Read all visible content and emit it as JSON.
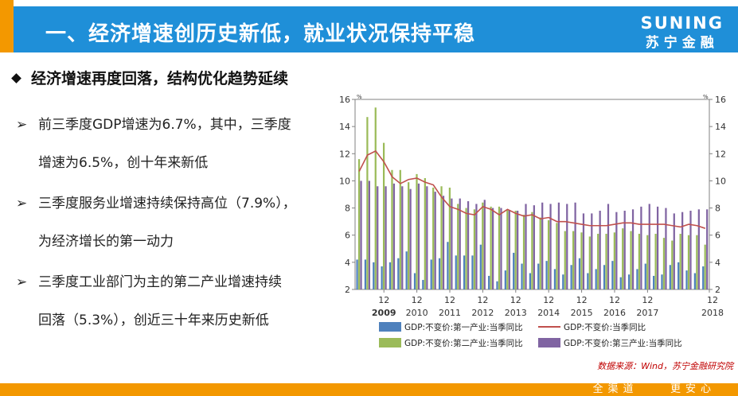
{
  "header": {
    "title": "一、经济增速创历史新低，就业状况保持平稳",
    "logo_en": "SUNING",
    "logo_cn": "苏宁金融"
  },
  "section": {
    "heading": "经济增速再度回落，结构优化趋势延续",
    "bullets": [
      {
        "line1": "前三季度GDP增速为6.7%，其中，三季度",
        "line2": "增速为6.5%，创十年来新低"
      },
      {
        "line1": "三季度服务业增速持续保持高位（7.9%），",
        "line2": "为经济增长的第一动力"
      },
      {
        "line1": "三季度工业部门为主的第二产业增速持续",
        "line2": "回落（5.3%），创近三十年来历史新低"
      }
    ]
  },
  "chart_data": {
    "type": "bar",
    "left_axis_unit": "%",
    "right_axis_unit": "%",
    "ylim": [
      2,
      16
    ],
    "yticks": [
      "2",
      "4",
      "6",
      "8",
      "10",
      "12",
      "14",
      "16"
    ],
    "x_month_labels": [
      "12",
      "12",
      "12",
      "12",
      "12",
      "12",
      "12",
      "12",
      "12"
    ],
    "x_year_labels": [
      "2009",
      "2010",
      "2011",
      "2012",
      "2013",
      "2014",
      "2015",
      "2016",
      "2017",
      "2018"
    ],
    "legend": [
      "GDP:不变价:第一产业:当季同比",
      "GDP:不变价:当季同比",
      "GDP:不变价:第二产业:当季同比",
      "GDP:不变价:第三产业:当季同比"
    ],
    "colors": {
      "primary": "#4f81bd",
      "secondary": "#9bbb59",
      "tertiary": "#8064a2",
      "line": "#c0504d"
    },
    "series": [
      {
        "name": "GDP:不变价:第一产业:当季同比",
        "kind": "bar",
        "values": [
          4.2,
          4.2,
          4.0,
          3.7,
          4.0,
          4.3,
          4.8,
          3.2,
          2.7,
          4.2,
          4.3,
          5.5,
          4.5,
          4.5,
          4.5,
          5.3,
          3.0,
          2.6,
          3.4,
          4.7,
          3.9,
          3.2,
          3.9,
          4.1,
          3.5,
          3.1,
          3.8,
          4.3,
          3.2,
          3.5,
          3.8,
          4.1,
          2.9,
          3.1,
          3.5,
          3.9,
          3.0,
          3.1,
          3.8,
          4.0,
          3.4,
          3.2,
          3.7
        ]
      },
      {
        "name": "GDP:不变价:第二产业:当季同比",
        "kind": "bar",
        "values": [
          11.6,
          14.7,
          15.4,
          12.8,
          10.8,
          10.8,
          9.9,
          10.5,
          10.2,
          9.5,
          9.6,
          9.5,
          8.3,
          8.0,
          7.9,
          8.4,
          8.1,
          8.1,
          7.9,
          7.8,
          7.5,
          7.7,
          7.3,
          7.1,
          6.9,
          6.3,
          6.3,
          6.2,
          5.9,
          6.1,
          6.1,
          6.2,
          6.5,
          6.3,
          6.1,
          6.0,
          6.1,
          5.8,
          5.6,
          6.1,
          6.0,
          6.0,
          5.3
        ]
      },
      {
        "name": "GDP:不变价:第三产业:当季同比",
        "kind": "bar",
        "values": [
          10.0,
          10.0,
          9.6,
          9.6,
          9.8,
          9.6,
          9.4,
          9.8,
          9.6,
          9.2,
          8.9,
          8.7,
          8.7,
          8.5,
          8.3,
          8.6,
          8.0,
          8.0,
          7.8,
          7.8,
          8.3,
          8.2,
          8.4,
          8.3,
          8.4,
          8.3,
          8.4,
          7.6,
          7.6,
          7.8,
          8.3,
          7.7,
          7.8,
          7.9,
          8.1,
          8.3,
          8.1,
          8.0,
          7.6,
          7.7,
          7.8,
          7.9,
          7.9
        ]
      },
      {
        "name": "GDP:不变价:当季同比",
        "kind": "line",
        "values": [
          10.7,
          11.9,
          12.2,
          11.4,
          10.3,
          9.8,
          10.1,
          10.2,
          9.9,
          9.7,
          8.8,
          8.1,
          7.9,
          7.6,
          7.5,
          8.1,
          7.9,
          7.5,
          7.9,
          7.6,
          7.4,
          7.5,
          7.2,
          7.3,
          7.0,
          7.0,
          6.9,
          6.8,
          6.7,
          6.7,
          6.7,
          6.8,
          6.9,
          6.9,
          6.8,
          6.8,
          6.8,
          6.8,
          6.7,
          6.6,
          6.8,
          6.7,
          6.5
        ]
      }
    ]
  },
  "source_note": "数据来源：Wind，苏宁金融研究院",
  "footer": {
    "slogan_left": "全渠道",
    "slogan_right": "更安心"
  }
}
